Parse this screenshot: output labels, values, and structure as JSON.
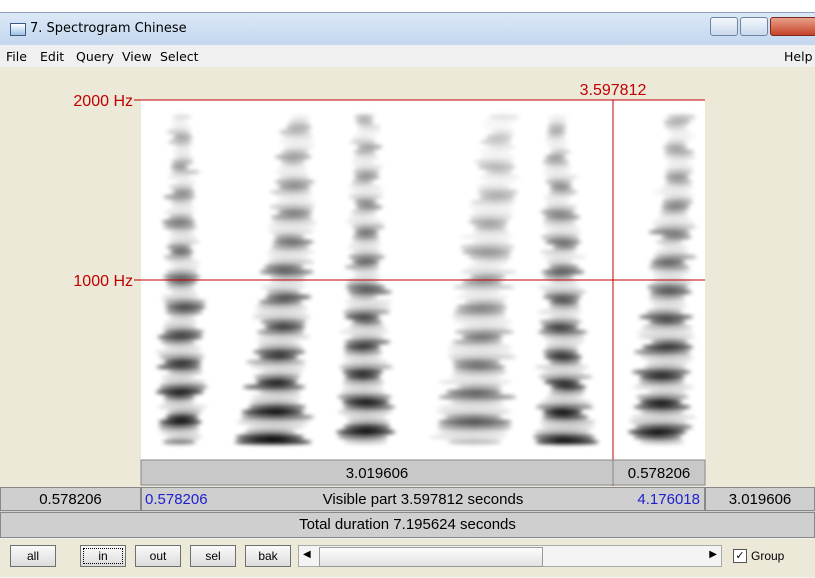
{
  "window": {
    "title": "7. Spectrogram Chinese",
    "menu": [
      "File",
      "Edit",
      "Query",
      "View",
      "Select"
    ],
    "help": "Help"
  },
  "spectrogram": {
    "y_labels": [
      "2000 Hz",
      "1000 Hz"
    ],
    "cursor_label": "3.597812"
  },
  "selection_bar": [
    "3.019606",
    "0.578206"
  ],
  "visible_row": {
    "left_outside": "0.578206",
    "start": "0.578206",
    "text": "Visible part 3.597812 seconds",
    "end": "4.176018",
    "right_outside": "3.019606"
  },
  "total_row": "Total duration 7.195624 seconds",
  "buttons": [
    "all",
    "in",
    "out",
    "sel",
    "bak"
  ],
  "group_checkbox": "Group"
}
